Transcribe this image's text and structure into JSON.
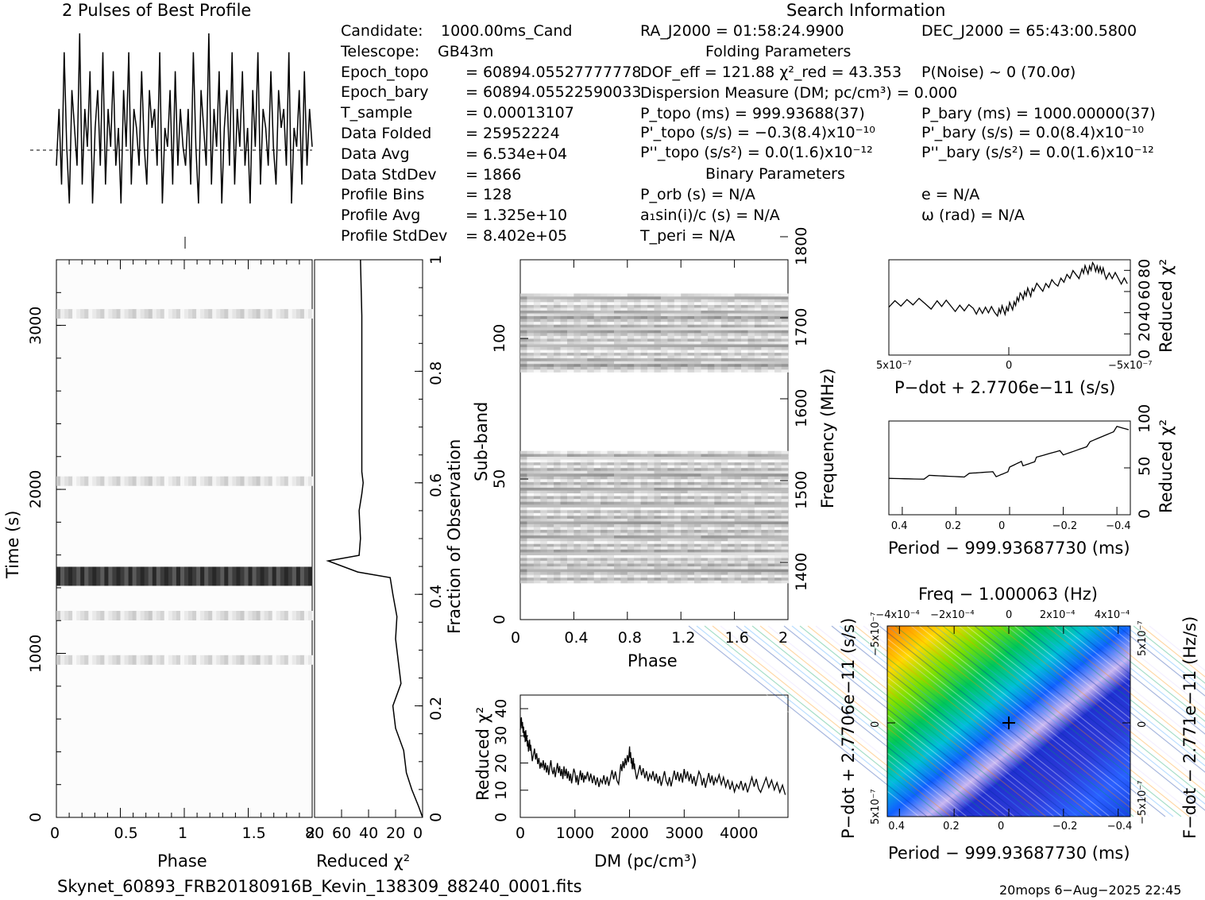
{
  "header": {
    "profile_title": "2 Pulses of Best Profile",
    "search_title": "Search Information"
  },
  "info_left": [
    {
      "label": "Candidate:",
      "value": "1000.00ms_Cand"
    },
    {
      "label": "Telescope:",
      "value": "GB43m"
    },
    {
      "label": "Epoch_topo",
      "value": "= 60894.05527777778"
    },
    {
      "label": "Epoch_bary",
      "value": "= 60894.05522590033"
    },
    {
      "label": "T_sample",
      "value": "=  0.00013107"
    },
    {
      "label": "Data Folded",
      "value": "=  25952224"
    },
    {
      "label": "Data Avg",
      "value": "=  6.534e+04"
    },
    {
      "label": "Data StdDev",
      "value": "=  1866"
    },
    {
      "label": "Profile Bins",
      "value": "=  128"
    },
    {
      "label": "Profile Avg",
      "value": "=  1.325e+10"
    },
    {
      "label": "Profile StdDev",
      "value": "=  8.402e+05"
    }
  ],
  "info_mid": {
    "ra": "RA_J2000 = 01:58:24.9900",
    "folding_title": "Folding Parameters",
    "dof": "DOF_eff = 121.88  χ²_red = 43.353",
    "dispersion": "Dispersion Measure (DM; pc/cm³) = 0.000",
    "p_topo": "P_topo (ms) =  999.93688(37)",
    "pd_topo": "P'_topo (s/s) = −0.3(8.4)x10⁻¹⁰",
    "pdd_topo": "P''_topo (s/s²) = 0.0(1.6)x10⁻¹²",
    "binary_title": "Binary Parameters",
    "p_orb": "P_orb (s) = N/A",
    "a1sini": "a₁sin(i)/c (s) = N/A",
    "t_peri": "T_peri = N/A"
  },
  "info_right": {
    "dec": "DEC_J2000 = 65:43:00.5800",
    "pnoise": "P(Noise) ~ 0   (70.0σ)",
    "p_bary": "P_bary (ms) =  1000.00000(37)",
    "pd_bary": "P'_bary (s/s) = 0.0(8.4)x10⁻¹⁰",
    "pdd_bary": "P''_bary (s/s²) = 0.0(1.6)x10⁻¹²",
    "e": "e = N/A",
    "omega": "ω (rad) = N/A"
  },
  "footer": {
    "filename": "Skynet_60893_FRB20180916B_Kevin_138309_88240_0001.fits",
    "stamp": "20mops   6−Aug−2025 22:45"
  },
  "chart_data": [
    {
      "type": "line",
      "name": "profile",
      "title": "2 Pulses of Best Profile",
      "xlim": [
        0,
        2
      ],
      "x_sample_count": 256,
      "values": [
        0.3,
        0.6,
        0.2,
        0.9,
        0.4,
        0.1,
        0.7,
        0.5,
        0.3,
        1.0,
        0.2,
        0.6,
        0.4,
        0.8,
        0.1,
        0.5,
        0.7,
        0.3,
        0.9,
        0.2,
        0.6,
        0.4,
        0.8,
        0.3,
        0.5,
        0.1,
        0.7,
        0.4,
        0.9,
        0.2,
        0.6,
        0.5,
        0.3,
        0.8,
        0.4,
        0.2,
        0.7,
        0.5,
        0.6,
        0.3,
        0.9,
        0.1,
        0.5,
        0.4,
        0.7,
        0.2,
        0.8,
        0.3,
        0.6,
        0.4
      ]
    },
    {
      "type": "heatmap",
      "name": "time-phase",
      "xlabel": "Phase",
      "ylabel": "Time (s)",
      "xlim": [
        0,
        2
      ],
      "ylim": [
        0,
        3400
      ],
      "xticks": [
        "0",
        "0.5",
        "1",
        "1.5",
        "2"
      ],
      "yticks": [
        "0",
        "1000",
        "2000",
        "3000"
      ],
      "bright_bands_s": [
        960,
        1230,
        1470,
        2050,
        3070
      ]
    },
    {
      "type": "line",
      "name": "reduced-chi2-vs-fraction",
      "xlabel": "Reduced χ²",
      "ylabel": "Fraction of Observation",
      "xticks": [
        "80",
        "60",
        "40",
        "20",
        "0"
      ],
      "yticks": [
        "0",
        "0.2",
        "0.4",
        "0.6",
        "0.8",
        "1"
      ],
      "xlim": [
        80,
        0
      ],
      "ylim": [
        0,
        1
      ],
      "points": [
        [
          0,
          0
        ],
        [
          3,
          0.02
        ],
        [
          8,
          0.05
        ],
        [
          12,
          0.08
        ],
        [
          14,
          0.12
        ],
        [
          20,
          0.16
        ],
        [
          22,
          0.2
        ],
        [
          16,
          0.24
        ],
        [
          18,
          0.28
        ],
        [
          20,
          0.32
        ],
        [
          19,
          0.36
        ],
        [
          22,
          0.4
        ],
        [
          24,
          0.43
        ],
        [
          48,
          0.44
        ],
        [
          70,
          0.46
        ],
        [
          47,
          0.47
        ],
        [
          46,
          0.5
        ],
        [
          47,
          0.55
        ],
        [
          45,
          0.58
        ],
        [
          44,
          0.6
        ],
        [
          45,
          0.62
        ],
        [
          45,
          0.7
        ],
        [
          45,
          0.8
        ],
        [
          45,
          0.9
        ],
        [
          46,
          1.0
        ]
      ]
    },
    {
      "type": "heatmap",
      "name": "subband-phase",
      "xlabel": "Phase",
      "ylabel": "Sub-band",
      "y2label": "Frequency (MHz)",
      "xlim": [
        0,
        2
      ],
      "ylim": [
        0,
        128
      ],
      "xticks": [
        "0",
        "0.4",
        "0.8",
        "1.2",
        "1.6",
        "2"
      ],
      "yticks": [
        "0",
        "50",
        "100"
      ],
      "y2ticks": [
        "1400",
        "1500",
        "1600",
        "1700",
        "1800"
      ],
      "occupied_bands": [
        [
          13,
          60
        ],
        [
          88,
          116
        ]
      ]
    },
    {
      "type": "line",
      "name": "chi2-vs-dm",
      "xlabel": "DM (pc/cm³)",
      "ylabel": "Reduced χ²",
      "xlim": [
        0,
        4900
      ],
      "ylim": [
        0,
        45
      ],
      "xticks": [
        "0",
        "1000",
        "2000",
        "3000",
        "4000"
      ],
      "yticks": [
        "0",
        "10",
        "20",
        "30",
        "40"
      ],
      "points": [
        [
          0,
          35
        ],
        [
          100,
          30
        ],
        [
          200,
          24
        ],
        [
          400,
          19
        ],
        [
          600,
          18
        ],
        [
          800,
          16
        ],
        [
          1000,
          15
        ],
        [
          1200,
          14
        ],
        [
          1500,
          14
        ],
        [
          1800,
          15
        ],
        [
          2000,
          24
        ],
        [
          2100,
          17
        ],
        [
          2400,
          15
        ],
        [
          2700,
          14
        ],
        [
          3000,
          15
        ],
        [
          3300,
          14
        ],
        [
          3600,
          13
        ],
        [
          4000,
          12
        ],
        [
          4400,
          12
        ],
        [
          4900,
          11
        ]
      ]
    },
    {
      "type": "line",
      "name": "chi2-vs-pdot",
      "xlabel": "P−dot + 2.7706e−11 (s/s)",
      "ylabel": "Reduced χ²",
      "xlim": [
        5e-07,
        -5e-07
      ],
      "ylim": [
        0,
        90
      ],
      "xticks": [
        "5x10⁻⁷",
        "0",
        "−5x10⁻⁷"
      ],
      "yticks": [
        "0",
        "20",
        "40",
        "60",
        "80"
      ],
      "points": [
        [
          5e-07,
          50
        ],
        [
          3e-07,
          48
        ],
        [
          1.5e-07,
          44
        ],
        [
          5e-08,
          40
        ],
        [
          0,
          45
        ],
        [
          -5e-08,
          55
        ],
        [
          -1e-07,
          62
        ],
        [
          -2e-07,
          70
        ],
        [
          -3e-07,
          78
        ],
        [
          -3.5e-07,
          85
        ],
        [
          -4e-07,
          75
        ],
        [
          -5e-07,
          70
        ]
      ]
    },
    {
      "type": "line",
      "name": "chi2-vs-period",
      "xlabel": "Period − 999.93687730 (ms)",
      "ylabel": "Reduced χ²",
      "xlim": [
        0.45,
        -0.45
      ],
      "ylim": [
        0,
        100
      ],
      "xticks": [
        "0.4",
        "0.2",
        "0",
        "−0.2",
        "−0.4"
      ],
      "yticks": [
        "0",
        "50",
        "100"
      ],
      "points": [
        [
          0.45,
          43
        ],
        [
          0.3,
          42
        ],
        [
          0.15,
          40
        ],
        [
          0.05,
          42
        ],
        [
          0,
          48
        ],
        [
          -0.05,
          55
        ],
        [
          -0.1,
          60
        ],
        [
          -0.2,
          68
        ],
        [
          -0.3,
          78
        ],
        [
          -0.4,
          90
        ],
        [
          -0.45,
          86
        ]
      ]
    },
    {
      "type": "heatmap",
      "name": "pdot-period-plane",
      "title": "Freq − 1.000063 (Hz)",
      "xlabel": "Period − 999.93687730 (ms)",
      "ylabel": "P−dot + 2.7706e−11 (s/s)",
      "y2label": "F−dot − 2.771e−11 (Hz/s)",
      "xticks": [
        "0.4",
        "0.2",
        "0",
        "−0.2",
        "−0.4"
      ],
      "x2ticks": [
        "−4x10⁻⁴",
        "−2x10⁻⁴",
        "0",
        "2x10⁻⁴",
        "4x10⁻⁴"
      ],
      "yticks": [
        "−5x10⁻⁷",
        "0",
        "5x10⁻⁷"
      ],
      "y2ticks": [
        "5x10⁻⁷",
        "0",
        "−5x10⁻⁷"
      ],
      "best_fit": [
        0,
        0
      ]
    }
  ]
}
